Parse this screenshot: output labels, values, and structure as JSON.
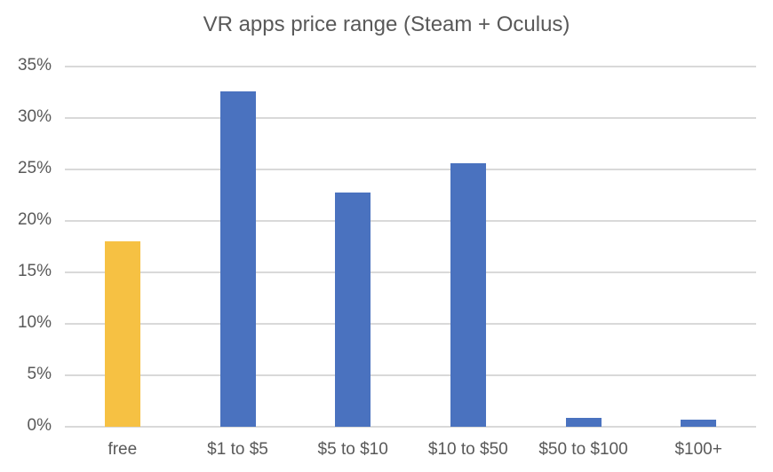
{
  "chart_data": {
    "type": "bar",
    "title": "VR apps price range (Steam + Oculus)",
    "xlabel": "",
    "ylabel": "",
    "categories": [
      "free",
      "$1 to $5",
      "$5 to $10",
      "$10 to $50",
      "$50 to $100",
      "$100+"
    ],
    "values": [
      18.0,
      32.6,
      22.8,
      25.6,
      0.9,
      0.7
    ],
    "value_unit": "%",
    "bar_colors": [
      "#F6C143",
      "#4A72BF",
      "#4A72BF",
      "#4A72BF",
      "#4A72BF",
      "#4A72BF"
    ],
    "ylim": [
      0,
      35
    ],
    "yticks": [
      "0%",
      "5%",
      "10%",
      "15%",
      "20%",
      "25%",
      "30%",
      "35%"
    ],
    "grid": true,
    "legend": null
  }
}
